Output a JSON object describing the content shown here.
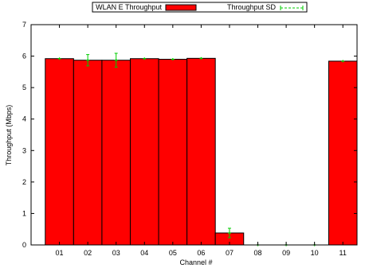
{
  "chart_data": {
    "type": "bar",
    "title": "",
    "xlabel": "Channel #",
    "ylabel": "Throughput (Mbps)",
    "ylim": [
      0,
      7
    ],
    "yticks": [
      "0",
      "1",
      "2",
      "3",
      "4",
      "5",
      "6",
      "7"
    ],
    "categories": [
      "01",
      "02",
      "03",
      "04",
      "05",
      "06",
      "07",
      "08",
      "09",
      "10",
      "11"
    ],
    "series": [
      {
        "name": "WLAN E Throughput",
        "values": [
          5.92,
          5.87,
          5.87,
          5.92,
          5.9,
          5.93,
          0.38,
          0,
          0,
          0,
          5.84
        ],
        "color": "#ff0000"
      },
      {
        "name": "Throughput SD",
        "values": [
          0.03,
          0.18,
          0.22,
          0.03,
          0.04,
          0.04,
          0.15,
          0.01,
          0.01,
          0.01,
          0.03
        ],
        "color": "#00cc00"
      }
    ],
    "legend_position": "top",
    "grid": false
  }
}
